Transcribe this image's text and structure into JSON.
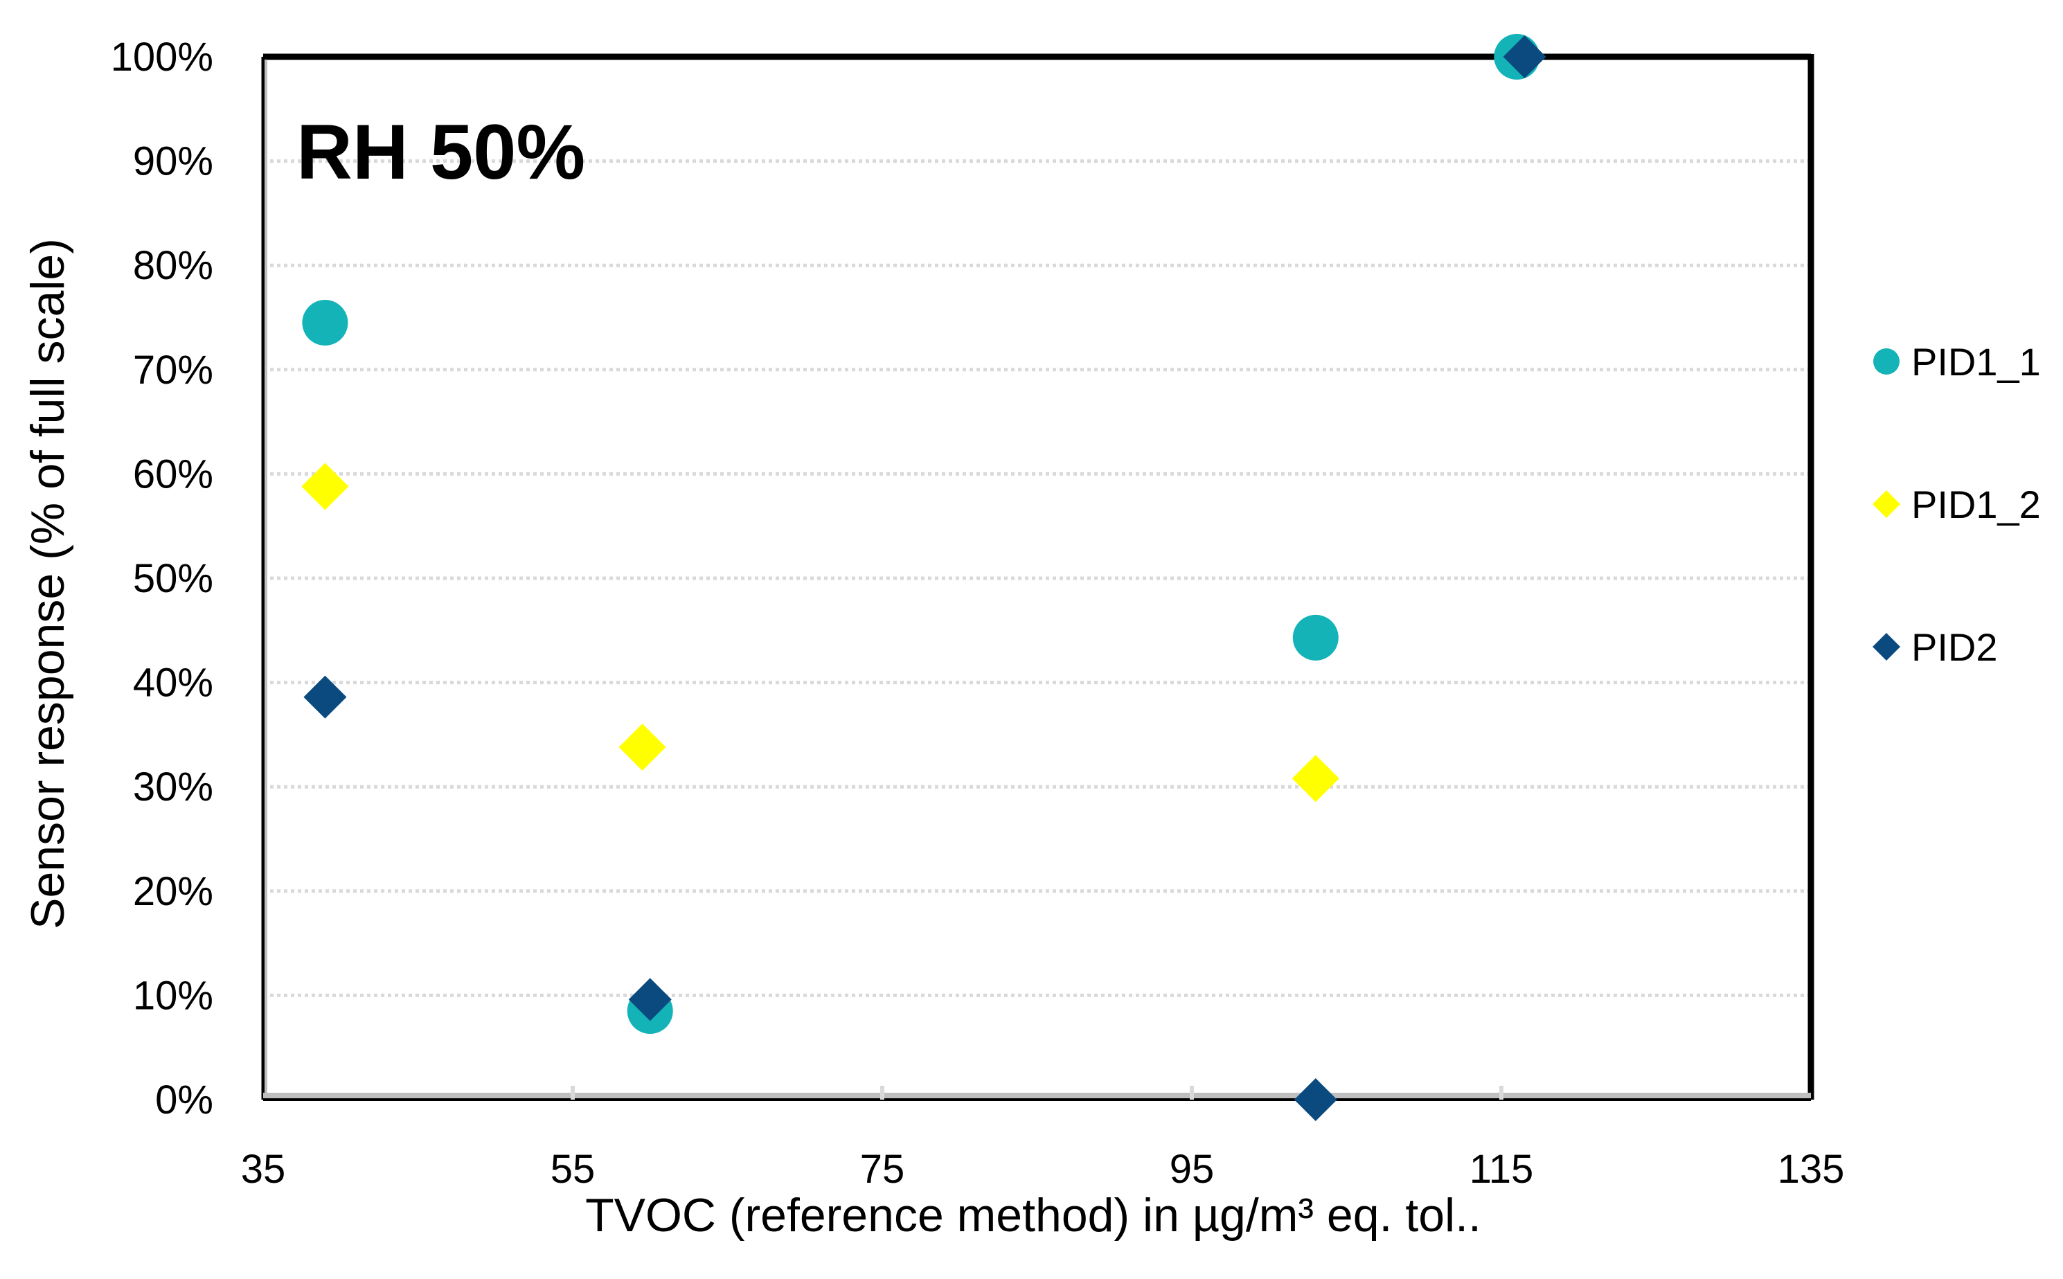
{
  "chart_data": {
    "type": "scatter",
    "title": "RH 50%",
    "xlabel": "TVOC (reference method)  in µg/m³ eq. tol..",
    "ylabel": "Sensor response (% of full scale)",
    "xlim": [
      35,
      135
    ],
    "ylim": [
      0,
      100
    ],
    "x_ticks": [
      35,
      55,
      75,
      95,
      115,
      135
    ],
    "y_ticks": [
      0,
      10,
      20,
      30,
      40,
      50,
      60,
      70,
      80,
      90,
      100
    ],
    "y_tick_labels": [
      "0%",
      "10%",
      "20%",
      "30%",
      "40%",
      "50%",
      "60%",
      "70%",
      "80%",
      "90%",
      "100%"
    ],
    "grid": "horizontal dotted",
    "legend_position": "right",
    "series": [
      {
        "name": "PID1_1",
        "marker": "circle",
        "color": "#14B3B8",
        "points": [
          {
            "x": 39,
            "y": 74.5
          },
          {
            "x": 60,
            "y": 8.5
          },
          {
            "x": 103,
            "y": 44.3
          },
          {
            "x": 116,
            "y": 100
          }
        ]
      },
      {
        "name": "PID1_2",
        "marker": "diamond",
        "color": "#FFFF00",
        "points": [
          {
            "x": 39,
            "y": 58.8
          },
          {
            "x": 59.5,
            "y": 33.8
          },
          {
            "x": 103,
            "y": 30.8
          }
        ]
      },
      {
        "name": "PID2",
        "marker": "diamond",
        "color": "#0A4A7E",
        "points": [
          {
            "x": 39,
            "y": 38.6
          },
          {
            "x": 60,
            "y": 9.6
          },
          {
            "x": 103,
            "y": 0
          },
          {
            "x": 116.5,
            "y": 100
          }
        ]
      }
    ]
  }
}
